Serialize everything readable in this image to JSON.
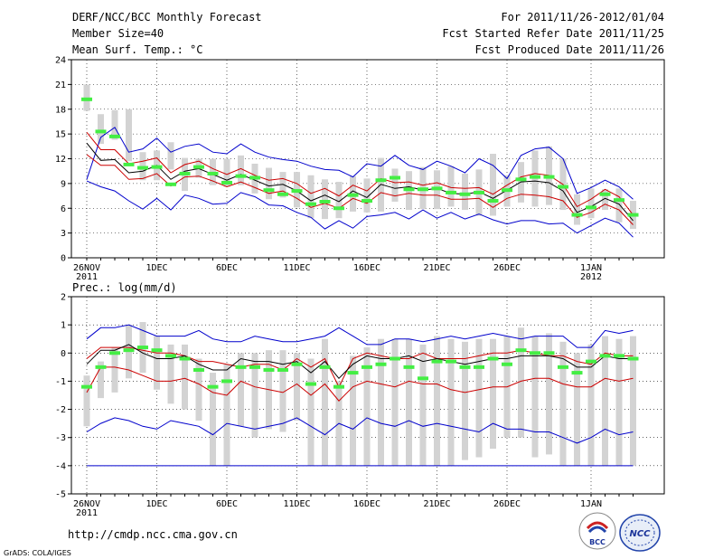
{
  "header": {
    "title": "DERF/NCC/BCC Monthly Forecast",
    "member": "Member Size=40",
    "variable": "Mean Surf. Temp.: °C",
    "for": "For 2011/11/26-2012/01/04",
    "started": "Fcst Started Refer Date 2011/11/25",
    "produced": "Fcst Produced Date 2011/11/26"
  },
  "footer": {
    "url": "http://cmdp.ncc.cma.gov.cn",
    "grads": "GrADS: COLA/IGES",
    "logo1": "BCC",
    "logo2": "NCC"
  },
  "colors": {
    "envelope": "#0000cc",
    "band": "#cc0000",
    "mean": "#000000",
    "marker": "#44ee44",
    "box": "#d3d3d3"
  },
  "chart_data": [
    {
      "type": "line",
      "title": "Mean Surf. Temp.: °C",
      "ylim": [
        0,
        24
      ],
      "yticks": [
        0,
        3,
        6,
        9,
        12,
        15,
        18,
        21,
        24
      ],
      "x_count": 40,
      "xtick_index": [
        0,
        5,
        10,
        15,
        20,
        25,
        30,
        36
      ],
      "xtick_labels": [
        "26NOV",
        "1DEC",
        "6DEC",
        "11DEC",
        "16DEC",
        "21DEC",
        "26DEC",
        "1JAN"
      ],
      "xtick_sublabels": {
        "0": "2011",
        "36": "2012"
      },
      "series": [
        {
          "name": "max",
          "values": [
            9.5,
            14.6,
            15.8,
            12.8,
            13.2,
            14.5,
            12.8,
            13.5,
            13.8,
            12.8,
            12.6,
            13.8,
            12.8,
            12.2,
            11.9,
            11.7,
            11.1,
            10.7,
            10.6,
            9.8,
            11.4,
            11.1,
            12.4,
            11.2,
            10.7,
            11.7,
            11.1,
            10.3,
            12.0,
            11.2,
            9.6,
            12.4,
            13.2,
            13.4,
            12.0,
            7.8,
            8.5,
            9.4,
            8.6,
            7.1
          ]
        },
        {
          "name": "upper",
          "values": [
            15.2,
            13.1,
            13.1,
            11.4,
            11.7,
            12.1,
            10.3,
            11.3,
            11.7,
            10.8,
            10.1,
            10.8,
            10.0,
            9.4,
            9.6,
            9.0,
            7.8,
            8.4,
            7.5,
            8.8,
            8.1,
            9.6,
            9.1,
            9.2,
            8.8,
            9.1,
            8.5,
            8.4,
            8.5,
            7.7,
            8.8,
            9.8,
            10.2,
            10.0,
            8.9,
            6.2,
            7.1,
            8.3,
            7.4,
            5.2
          ]
        },
        {
          "name": "mean",
          "values": [
            13.9,
            11.8,
            11.9,
            10.3,
            10.5,
            11.2,
            9.5,
            10.5,
            10.8,
            10.1,
            9.4,
            10.1,
            9.4,
            8.7,
            8.9,
            8.1,
            6.9,
            7.6,
            6.8,
            8.1,
            7.3,
            8.9,
            8.4,
            8.6,
            8.2,
            8.4,
            7.8,
            7.7,
            8.0,
            7.2,
            8.2,
            9.2,
            9.3,
            9.1,
            8.1,
            5.5,
            6.2,
            7.2,
            6.5,
            4.5
          ]
        },
        {
          "name": "lower",
          "values": [
            12.5,
            11.2,
            11.2,
            9.5,
            9.6,
            10.2,
            8.7,
            9.8,
            9.9,
            9.3,
            8.6,
            9.2,
            8.5,
            7.8,
            8.1,
            7.2,
            6.1,
            6.6,
            6.0,
            7.2,
            6.6,
            7.9,
            7.5,
            7.8,
            7.6,
            7.6,
            7.1,
            7.1,
            7.2,
            6.1,
            7.2,
            7.7,
            7.6,
            7.4,
            6.9,
            4.9,
            5.5,
            6.5,
            5.8,
            4.0
          ]
        },
        {
          "name": "min",
          "values": [
            9.3,
            8.6,
            8.1,
            6.9,
            5.9,
            7.2,
            5.8,
            7.6,
            7.2,
            6.5,
            6.6,
            7.9,
            7.4,
            6.4,
            6.3,
            5.5,
            4.9,
            3.5,
            4.5,
            3.6,
            5.0,
            5.2,
            5.5,
            4.7,
            5.8,
            4.8,
            5.5,
            4.7,
            5.3,
            4.6,
            4.1,
            4.5,
            4.5,
            4.1,
            4.2,
            3.0,
            3.9,
            4.8,
            4.2,
            2.5
          ]
        }
      ],
      "markers": [
        19.2,
        15.3,
        14.7,
        11.3,
        10.9,
        11.0,
        8.9,
        10.2,
        11.0,
        10.2,
        9.1,
        9.9,
        9.7,
        8.2,
        7.7,
        8.1,
        6.5,
        6.8,
        6.0,
        7.6,
        6.9,
        9.4,
        9.7,
        8.3,
        8.3,
        8.4,
        7.9,
        7.7,
        7.9,
        6.9,
        8.2,
        9.5,
        9.8,
        9.8,
        8.6,
        5.2,
        6.1,
        7.7,
        7.0,
        5.2
      ],
      "boxes": [
        [
          17.8,
          21.0
        ],
        [
          13.8,
          17.4
        ],
        [
          14.3,
          17.9
        ],
        [
          11.7,
          18.0
        ],
        [
          9.4,
          12.8
        ],
        [
          9.4,
          13.0
        ],
        [
          10.7,
          14.0
        ],
        [
          8.1,
          12.1
        ],
        [
          9.7,
          12.0
        ],
        [
          8.8,
          12.0
        ],
        [
          8.6,
          12.0
        ],
        [
          8.8,
          12.4
        ],
        [
          7.8,
          11.4
        ],
        [
          7.1,
          10.9
        ],
        [
          7.3,
          10.4
        ],
        [
          6.1,
          10.4
        ],
        [
          4.8,
          10.0
        ],
        [
          4.7,
          9.5
        ],
        [
          4.8,
          9.2
        ],
        [
          5.6,
          9.9
        ],
        [
          5.5,
          9.6
        ],
        [
          5.6,
          12.1
        ],
        [
          6.8,
          10.8
        ],
        [
          5.8,
          10.5
        ],
        [
          5.9,
          11.0
        ],
        [
          5.9,
          10.6
        ],
        [
          6.2,
          11.1
        ],
        [
          5.8,
          10.2
        ],
        [
          5.1,
          10.7
        ],
        [
          5.1,
          12.6
        ],
        [
          6.2,
          10.0
        ],
        [
          6.7,
          11.6
        ],
        [
          6.2,
          13.0
        ],
        [
          6.4,
          13.5
        ],
        [
          5.8,
          12.0
        ],
        [
          4.0,
          7.7
        ],
        [
          4.8,
          8.4
        ],
        [
          5.8,
          8.3
        ],
        [
          4.3,
          8.4
        ],
        [
          3.5,
          6.9
        ]
      ]
    },
    {
      "type": "line",
      "title": "Prec.: log(mm/d)",
      "ylim": [
        -5,
        2
      ],
      "yticks": [
        -5,
        -4,
        -3,
        -2,
        -1,
        0,
        1,
        2
      ],
      "x_count": 40,
      "xtick_index": [
        0,
        5,
        10,
        15,
        20,
        25,
        30,
        36
      ],
      "xtick_labels": [
        "26NOV",
        "1DEC",
        "6DEC",
        "11DEC",
        "16DEC",
        "21DEC",
        "26DEC",
        "1JAN"
      ],
      "xtick_sublabels": {
        "0": "2011"
      },
      "series": [
        {
          "name": "max",
          "values": [
            0.5,
            0.9,
            0.9,
            1.0,
            0.8,
            0.6,
            0.6,
            0.6,
            0.8,
            0.5,
            0.4,
            0.4,
            0.6,
            0.5,
            0.4,
            0.4,
            0.5,
            0.6,
            0.9,
            0.6,
            0.3,
            0.3,
            0.5,
            0.5,
            0.4,
            0.5,
            0.6,
            0.5,
            0.6,
            0.7,
            0.6,
            0.5,
            0.6,
            0.6,
            0.6,
            0.2,
            0.2,
            0.8,
            0.7,
            0.8
          ]
        },
        {
          "name": "upper",
          "values": [
            -0.2,
            0.2,
            0.2,
            0.2,
            0.1,
            0.0,
            0.0,
            -0.1,
            -0.3,
            -0.3,
            -0.4,
            -0.5,
            -0.4,
            -0.4,
            -0.6,
            -0.2,
            -0.5,
            -0.2,
            -1.2,
            -0.2,
            0.0,
            -0.1,
            -0.2,
            -0.2,
            0.0,
            -0.2,
            -0.2,
            -0.2,
            -0.1,
            0.0,
            0.0,
            0.1,
            0.0,
            -0.1,
            -0.1,
            -0.3,
            -0.4,
            0.0,
            -0.1,
            -0.1
          ]
        },
        {
          "name": "mean",
          "values": [
            -0.4,
            0.1,
            0.1,
            0.3,
            0.0,
            -0.2,
            -0.2,
            -0.1,
            -0.4,
            -0.6,
            -0.6,
            -0.2,
            -0.3,
            -0.3,
            -0.4,
            -0.3,
            -0.7,
            -0.3,
            -0.9,
            -0.4,
            -0.1,
            -0.2,
            -0.2,
            -0.1,
            -0.3,
            -0.2,
            -0.3,
            -0.4,
            -0.3,
            -0.2,
            -0.2,
            -0.1,
            -0.1,
            -0.1,
            -0.2,
            -0.5,
            -0.5,
            -0.1,
            -0.2,
            -0.2
          ]
        },
        {
          "name": "lower",
          "values": [
            -1.4,
            -0.5,
            -0.5,
            -0.6,
            -0.8,
            -1.0,
            -1.0,
            -0.9,
            -1.1,
            -1.4,
            -1.5,
            -1.0,
            -1.2,
            -1.3,
            -1.4,
            -1.1,
            -1.5,
            -1.1,
            -1.7,
            -1.2,
            -1.0,
            -1.1,
            -1.2,
            -1.0,
            -1.1,
            -1.1,
            -1.3,
            -1.4,
            -1.3,
            -1.2,
            -1.2,
            -1.0,
            -0.9,
            -0.9,
            -1.1,
            -1.2,
            -1.2,
            -0.9,
            -1.0,
            -0.9
          ]
        },
        {
          "name": "min",
          "values": [
            -2.8,
            -2.5,
            -2.3,
            -2.4,
            -2.6,
            -2.7,
            -2.4,
            -2.5,
            -2.6,
            -2.9,
            -2.5,
            -2.6,
            -2.7,
            -2.6,
            -2.5,
            -2.3,
            -2.6,
            -2.9,
            -2.5,
            -2.7,
            -2.3,
            -2.5,
            -2.6,
            -2.4,
            -2.6,
            -2.5,
            -2.6,
            -2.7,
            -2.8,
            -2.5,
            -2.7,
            -2.7,
            -2.8,
            -2.8,
            -3.0,
            -3.2,
            -3.0,
            -2.7,
            -2.9,
            -2.8
          ]
        },
        {
          "name": "floor",
          "values": [
            -4,
            -4,
            -4,
            -4,
            -4,
            -4,
            -4,
            -4,
            -4,
            -4,
            -4,
            -4,
            -4,
            -4,
            -4,
            -4,
            -4,
            -4,
            -4,
            -4,
            -4,
            -4,
            -4,
            -4,
            -4,
            -4,
            -4,
            -4,
            -4,
            -4,
            -4,
            -4,
            -4,
            -4,
            -4,
            -4,
            -4,
            -4,
            -4,
            -4
          ]
        }
      ],
      "markers": [
        -1.2,
        -0.5,
        0.0,
        0.1,
        0.2,
        0.1,
        -0.1,
        -0.2,
        -0.6,
        -1.2,
        -1.0,
        -0.5,
        -0.5,
        -0.6,
        -0.6,
        -0.4,
        -1.1,
        -0.5,
        -1.2,
        -0.7,
        -0.5,
        -0.4,
        -0.2,
        -0.5,
        -0.9,
        -0.3,
        -0.3,
        -0.5,
        -0.5,
        -0.2,
        -0.4,
        0.1,
        0.0,
        0.0,
        -0.5,
        -0.7,
        -0.3,
        -0.1,
        -0.1,
        -0.2
      ],
      "boxes": [
        [
          -2.6,
          -0.8
        ],
        [
          -1.6,
          -0.3
        ],
        [
          -1.4,
          0.2
        ],
        [
          -0.9,
          1.0
        ],
        [
          -0.7,
          1.1
        ],
        [
          -1.3,
          0.6
        ],
        [
          -1.8,
          0.3
        ],
        [
          -2.0,
          0.3
        ],
        [
          -2.4,
          -0.2
        ],
        [
          -4.0,
          -0.7
        ],
        [
          -4.0,
          -0.4
        ],
        [
          -2.6,
          0.0
        ],
        [
          -3.0,
          0.0
        ],
        [
          -2.7,
          0.1
        ],
        [
          -2.8,
          0.1
        ],
        [
          -2.4,
          0.0
        ],
        [
          -4.0,
          -0.2
        ],
        [
          -4.0,
          0.5
        ],
        [
          -4.0,
          -1.0
        ],
        [
          -4.0,
          -0.1
        ],
        [
          -4.0,
          0.2
        ],
        [
          -4.0,
          0.5
        ],
        [
          -4.0,
          0.5
        ],
        [
          -4.0,
          0.5
        ],
        [
          -4.0,
          0.3
        ],
        [
          -4.0,
          0.6
        ],
        [
          -4.0,
          0.5
        ],
        [
          -3.8,
          0.4
        ],
        [
          -3.7,
          0.5
        ],
        [
          -3.4,
          0.5
        ],
        [
          -3.0,
          0.6
        ],
        [
          -3.0,
          0.9
        ],
        [
          -3.7,
          0.6
        ],
        [
          -3.6,
          0.7
        ],
        [
          -4.0,
          0.4
        ],
        [
          -4.0,
          0.0
        ],
        [
          -4.0,
          0.3
        ],
        [
          -4.0,
          0.6
        ],
        [
          -4.0,
          0.5
        ],
        [
          -4.0,
          0.6
        ]
      ]
    }
  ]
}
